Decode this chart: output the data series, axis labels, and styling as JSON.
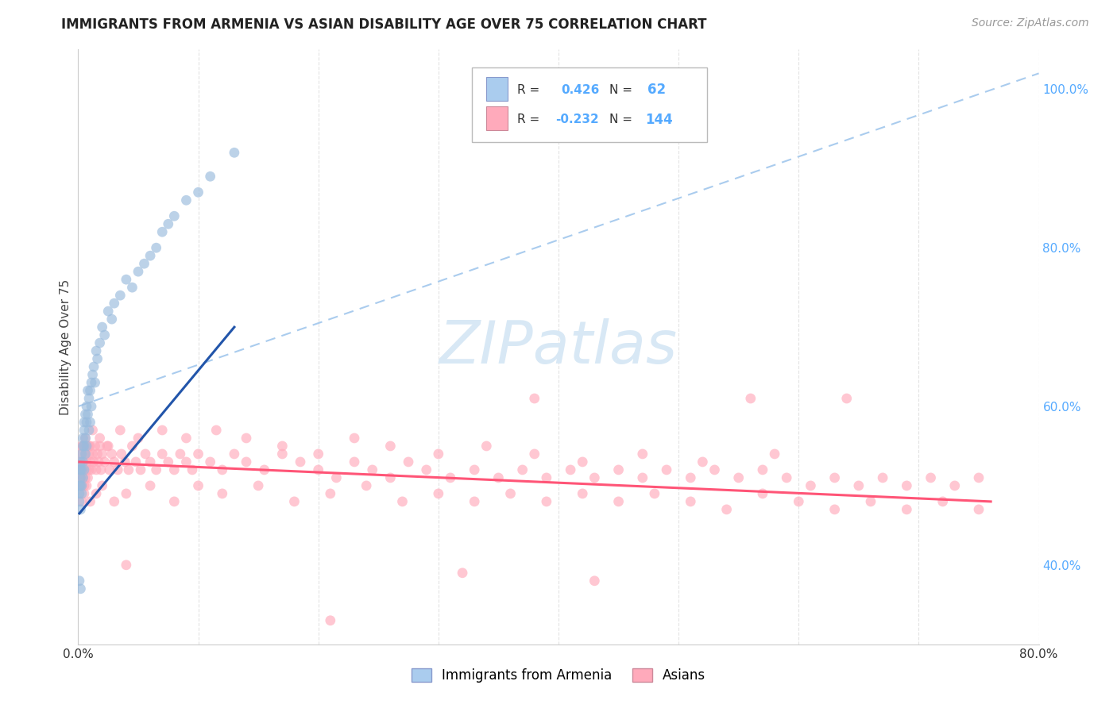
{
  "title": "IMMIGRANTS FROM ARMENIA VS ASIAN DISABILITY AGE OVER 75 CORRELATION CHART",
  "source": "Source: ZipAtlas.com",
  "ylabel": "Disability Age Over 75",
  "xmin": 0.0,
  "xmax": 0.8,
  "ymin": 0.3,
  "ymax": 1.05,
  "blue_color": "#99BBDD",
  "pink_color": "#FFAABB",
  "blue_line_color": "#2255AA",
  "pink_line_color": "#FF5577",
  "diag_color": "#AACCEE",
  "legend_blue_fill": "#AACCEE",
  "legend_pink_fill": "#FFAABB",
  "watermark_color": "#D8E8F5",
  "right_tick_color": "#55AAFF",
  "grid_color": "#DDDDDD",
  "title_color": "#222222",
  "source_color": "#999999",
  "ylabel_color": "#444444",
  "xtick_color": "#333333",
  "blue_x": [
    0.001,
    0.001,
    0.001,
    0.001,
    0.002,
    0.002,
    0.002,
    0.002,
    0.002,
    0.003,
    0.003,
    0.003,
    0.003,
    0.004,
    0.004,
    0.004,
    0.004,
    0.005,
    0.005,
    0.005,
    0.005,
    0.006,
    0.006,
    0.006,
    0.007,
    0.007,
    0.007,
    0.008,
    0.008,
    0.009,
    0.009,
    0.01,
    0.01,
    0.011,
    0.011,
    0.012,
    0.013,
    0.014,
    0.015,
    0.016,
    0.018,
    0.02,
    0.022,
    0.025,
    0.028,
    0.03,
    0.035,
    0.04,
    0.045,
    0.05,
    0.055,
    0.06,
    0.065,
    0.07,
    0.075,
    0.08,
    0.09,
    0.1,
    0.11,
    0.13,
    0.001,
    0.002
  ],
  "blue_y": [
    0.49,
    0.52,
    0.5,
    0.48,
    0.51,
    0.53,
    0.5,
    0.47,
    0.52,
    0.54,
    0.5,
    0.52,
    0.49,
    0.53,
    0.55,
    0.51,
    0.56,
    0.55,
    0.58,
    0.52,
    0.57,
    0.56,
    0.59,
    0.54,
    0.58,
    0.6,
    0.55,
    0.59,
    0.62,
    0.61,
    0.57,
    0.62,
    0.58,
    0.63,
    0.6,
    0.64,
    0.65,
    0.63,
    0.67,
    0.66,
    0.68,
    0.7,
    0.69,
    0.72,
    0.71,
    0.73,
    0.74,
    0.76,
    0.75,
    0.77,
    0.78,
    0.79,
    0.8,
    0.82,
    0.83,
    0.84,
    0.86,
    0.87,
    0.89,
    0.92,
    0.38,
    0.37
  ],
  "pink_x": [
    0.001,
    0.002,
    0.002,
    0.003,
    0.003,
    0.003,
    0.004,
    0.004,
    0.005,
    0.005,
    0.005,
    0.006,
    0.006,
    0.007,
    0.007,
    0.008,
    0.008,
    0.009,
    0.009,
    0.01,
    0.01,
    0.011,
    0.012,
    0.013,
    0.014,
    0.015,
    0.016,
    0.017,
    0.018,
    0.019,
    0.02,
    0.022,
    0.024,
    0.026,
    0.028,
    0.03,
    0.033,
    0.036,
    0.039,
    0.042,
    0.045,
    0.048,
    0.052,
    0.056,
    0.06,
    0.065,
    0.07,
    0.075,
    0.08,
    0.085,
    0.09,
    0.095,
    0.1,
    0.11,
    0.12,
    0.13,
    0.14,
    0.155,
    0.17,
    0.185,
    0.2,
    0.215,
    0.23,
    0.245,
    0.26,
    0.275,
    0.29,
    0.31,
    0.33,
    0.35,
    0.37,
    0.39,
    0.41,
    0.43,
    0.45,
    0.47,
    0.49,
    0.51,
    0.53,
    0.55,
    0.57,
    0.59,
    0.61,
    0.63,
    0.65,
    0.67,
    0.69,
    0.71,
    0.73,
    0.75,
    0.003,
    0.005,
    0.007,
    0.01,
    0.015,
    0.02,
    0.03,
    0.04,
    0.06,
    0.08,
    0.1,
    0.12,
    0.15,
    0.18,
    0.21,
    0.24,
    0.27,
    0.3,
    0.33,
    0.36,
    0.39,
    0.42,
    0.45,
    0.48,
    0.51,
    0.54,
    0.57,
    0.6,
    0.63,
    0.66,
    0.69,
    0.72,
    0.75,
    0.003,
    0.006,
    0.009,
    0.012,
    0.018,
    0.025,
    0.035,
    0.05,
    0.07,
    0.09,
    0.115,
    0.14,
    0.17,
    0.2,
    0.23,
    0.26,
    0.3,
    0.34,
    0.38,
    0.42,
    0.47,
    0.52,
    0.58
  ],
  "pink_y": [
    0.52,
    0.51,
    0.54,
    0.5,
    0.53,
    0.52,
    0.51,
    0.55,
    0.53,
    0.52,
    0.5,
    0.54,
    0.51,
    0.53,
    0.52,
    0.55,
    0.51,
    0.54,
    0.52,
    0.53,
    0.55,
    0.52,
    0.54,
    0.53,
    0.55,
    0.52,
    0.54,
    0.53,
    0.55,
    0.52,
    0.54,
    0.53,
    0.55,
    0.52,
    0.54,
    0.53,
    0.52,
    0.54,
    0.53,
    0.52,
    0.55,
    0.53,
    0.52,
    0.54,
    0.53,
    0.52,
    0.54,
    0.53,
    0.52,
    0.54,
    0.53,
    0.52,
    0.54,
    0.53,
    0.52,
    0.54,
    0.53,
    0.52,
    0.54,
    0.53,
    0.52,
    0.51,
    0.53,
    0.52,
    0.51,
    0.53,
    0.52,
    0.51,
    0.52,
    0.51,
    0.52,
    0.51,
    0.52,
    0.51,
    0.52,
    0.51,
    0.52,
    0.51,
    0.52,
    0.51,
    0.52,
    0.51,
    0.5,
    0.51,
    0.5,
    0.51,
    0.5,
    0.51,
    0.5,
    0.51,
    0.48,
    0.49,
    0.5,
    0.48,
    0.49,
    0.5,
    0.48,
    0.49,
    0.5,
    0.48,
    0.5,
    0.49,
    0.5,
    0.48,
    0.49,
    0.5,
    0.48,
    0.49,
    0.48,
    0.49,
    0.48,
    0.49,
    0.48,
    0.49,
    0.48,
    0.47,
    0.49,
    0.48,
    0.47,
    0.48,
    0.47,
    0.48,
    0.47,
    0.55,
    0.56,
    0.55,
    0.57,
    0.56,
    0.55,
    0.57,
    0.56,
    0.57,
    0.56,
    0.57,
    0.56,
    0.55,
    0.54,
    0.56,
    0.55,
    0.54,
    0.55,
    0.54,
    0.53,
    0.54,
    0.53,
    0.54
  ],
  "pink_outliers_x": [
    0.38,
    0.56,
    0.64,
    0.04,
    0.32,
    0.43,
    0.21
  ],
  "pink_outliers_y": [
    0.61,
    0.61,
    0.61,
    0.4,
    0.39,
    0.38,
    0.33
  ],
  "blue_trendline_x": [
    0.001,
    0.13
  ],
  "blue_trendline_y": [
    0.465,
    0.7
  ],
  "pink_trendline_x": [
    0.001,
    0.76
  ],
  "pink_trendline_y": [
    0.53,
    0.48
  ],
  "diag_line_x": [
    0.0,
    0.8
  ],
  "diag_line_y": [
    0.6,
    1.02
  ]
}
